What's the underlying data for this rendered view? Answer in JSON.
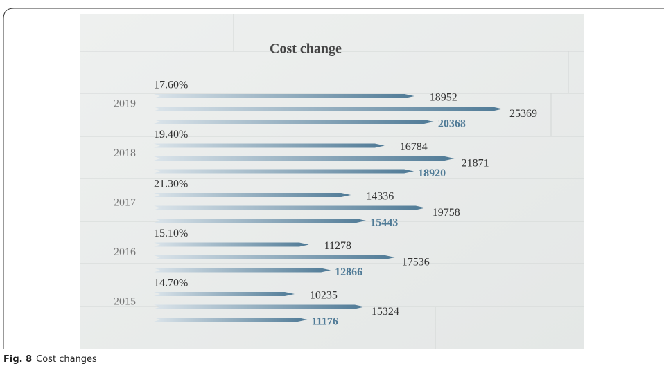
{
  "chart_data": {
    "type": "bar",
    "orientation": "horizontal",
    "title": "Cost change",
    "categories": [
      "2019",
      "2018",
      "2017",
      "2016",
      "2015"
    ],
    "annotations": [
      "17.60%",
      "19.40%",
      "21.30%",
      "15.10%",
      "14.70%"
    ],
    "series": [
      {
        "color": "#4f7a96",
        "values": [
          18952,
          16784,
          14336,
          11278,
          10235
        ]
      },
      {
        "color": "#4f7a96",
        "values": [
          25369,
          21871,
          19758,
          17536,
          15324
        ]
      },
      {
        "color": "#4f7a96",
        "label_color": "#4f7a96",
        "values": [
          20368,
          18920,
          15443,
          12866,
          11176
        ]
      }
    ]
  },
  "caption": {
    "label": "Fig. 8",
    "text": "Cost changes"
  }
}
